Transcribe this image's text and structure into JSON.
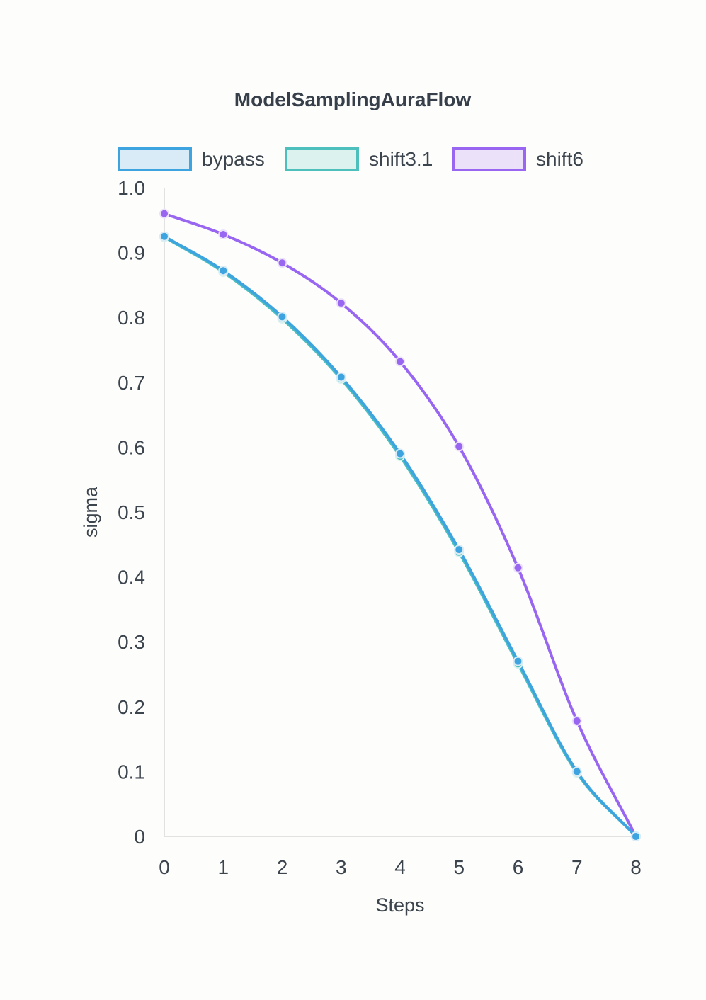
{
  "chart_data": {
    "type": "line",
    "title": "ModelSamplingAuraFlow",
    "xlabel": "Steps",
    "ylabel": "sigma",
    "x": [
      0,
      1,
      2,
      3,
      4,
      5,
      6,
      7,
      8
    ],
    "xticks": [
      "0",
      "1",
      "2",
      "3",
      "4",
      "5",
      "6",
      "7",
      "8"
    ],
    "yticks": [
      "0",
      "0.1",
      "0.2",
      "0.3",
      "0.4",
      "0.5",
      "0.6",
      "0.7",
      "0.8",
      "0.9",
      "1.0"
    ],
    "ylim": [
      0,
      1.0
    ],
    "xlim": [
      0,
      8
    ],
    "grid": false,
    "legend_position": "top",
    "series": [
      {
        "name": "bypass",
        "color": "#3ea4e0",
        "fill": "#d9ebf7",
        "values": [
          0.925,
          0.872,
          0.801,
          0.708,
          0.59,
          0.442,
          0.27,
          0.1,
          0.0
        ]
      },
      {
        "name": "shift3.1",
        "color": "#4dc0bd",
        "fill": "#dbf2ee",
        "values": [
          0.924,
          0.87,
          0.798,
          0.705,
          0.586,
          0.438,
          0.266,
          0.098,
          0.0
        ]
      },
      {
        "name": "shift6",
        "color": "#9966f2",
        "fill": "#ebe2fa",
        "values": [
          0.96,
          0.928,
          0.884,
          0.822,
          0.732,
          0.601,
          0.414,
          0.178,
          0.0
        ]
      }
    ]
  }
}
